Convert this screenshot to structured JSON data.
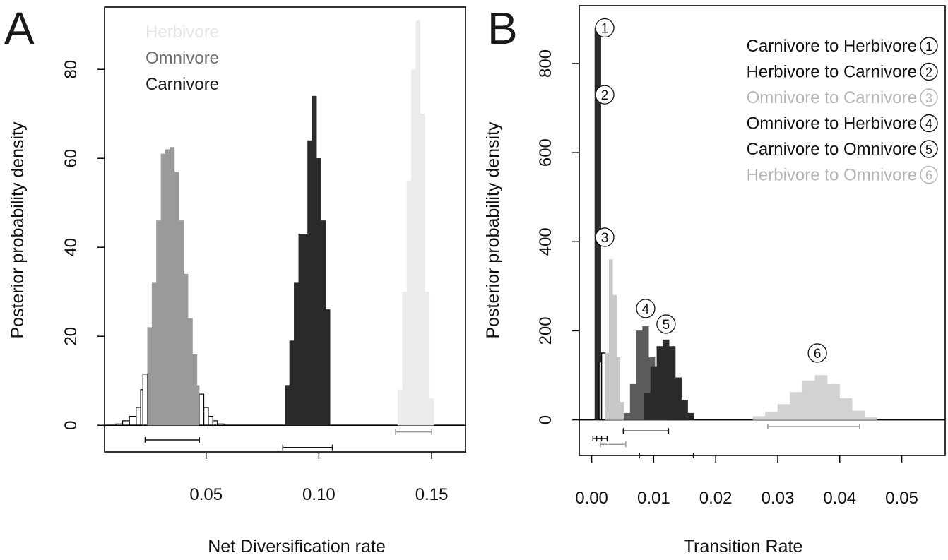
{
  "chart_data": [
    {
      "panel_label": "A",
      "type": "histogram",
      "xlabel": "Net Diversification rate",
      "ylabel": "Posterior probability density",
      "xlim": [
        0.005,
        0.165
      ],
      "ylim": [
        -6,
        94
      ],
      "x_ticks": [
        0.05,
        0.1,
        0.15
      ],
      "x_tick_labels": [
        "0.05",
        "0.10",
        "0.15"
      ],
      "y_ticks": [
        0,
        20,
        40,
        60,
        80
      ],
      "y_tick_labels": [
        "0",
        "20",
        "40",
        "60",
        "80"
      ],
      "legend_position": "top-left",
      "legend": [
        {
          "label": "Herbivore",
          "color": "#e6e6e6"
        },
        {
          "label": "Omnivore",
          "color": "#707070"
        },
        {
          "label": "Carnivore",
          "color": "#1a1a1a"
        }
      ],
      "series": [
        {
          "name": "Omnivore",
          "fill": "#9a9a9a",
          "bins": [
            [
              0.024,
              0.026,
              22
            ],
            [
              0.026,
              0.028,
              32
            ],
            [
              0.028,
              0.03,
              46
            ],
            [
              0.03,
              0.032,
              61
            ],
            [
              0.032,
              0.034,
              62
            ],
            [
              0.034,
              0.036,
              62.5
            ],
            [
              0.036,
              0.038,
              57
            ],
            [
              0.038,
              0.04,
              46
            ],
            [
              0.04,
              0.042,
              34
            ],
            [
              0.042,
              0.044,
              24
            ],
            [
              0.044,
              0.046,
              16
            ],
            [
              0.046,
              0.047,
              9
            ]
          ],
          "outline_bins": [
            [
              0.01,
              0.013,
              0.3
            ],
            [
              0.013,
              0.016,
              1
            ],
            [
              0.016,
              0.019,
              2
            ],
            [
              0.019,
              0.021,
              4
            ],
            [
              0.021,
              0.022,
              8
            ],
            [
              0.022,
              0.024,
              11.5
            ],
            [
              0.047,
              0.049,
              7
            ],
            [
              0.049,
              0.051,
              4
            ],
            [
              0.051,
              0.053,
              2
            ],
            [
              0.053,
              0.055,
              1
            ],
            [
              0.055,
              0.058,
              0.3
            ]
          ],
          "credible_interval": [
            0.023,
            0.047
          ],
          "ci_y": -3.3
        },
        {
          "name": "Carnivore",
          "fill": "#2a2a2a",
          "bins": [
            [
              0.085,
              0.087,
              9
            ],
            [
              0.087,
              0.089,
              19
            ],
            [
              0.089,
              0.091,
              32
            ],
            [
              0.091,
              0.093,
              43
            ],
            [
              0.093,
              0.095,
              43
            ],
            [
              0.095,
              0.097,
              64
            ],
            [
              0.097,
              0.099,
              74
            ],
            [
              0.099,
              0.101,
              60
            ],
            [
              0.101,
              0.103,
              46
            ],
            [
              0.103,
              0.105,
              26
            ]
          ],
          "credible_interval": [
            0.084,
            0.106
          ],
          "ci_y": -5
        },
        {
          "name": "Herbivore",
          "fill": "#ebebeb",
          "bins": [
            [
              0.135,
              0.137,
              8
            ],
            [
              0.137,
              0.139,
              30
            ],
            [
              0.139,
              0.141,
              55
            ],
            [
              0.141,
              0.143,
              80
            ],
            [
              0.143,
              0.145,
              91
            ],
            [
              0.145,
              0.147,
              70
            ],
            [
              0.147,
              0.149,
              30
            ],
            [
              0.149,
              0.151,
              6
            ]
          ],
          "credible_interval": [
            0.134,
            0.15
          ],
          "ci_y": -1.5
        }
      ]
    },
    {
      "panel_label": "B",
      "type": "histogram",
      "xlabel": "Transition Rate",
      "ylabel": "Posterior probability density",
      "xlim": [
        -0.002,
        0.057
      ],
      "ylim": [
        -80,
        930
      ],
      "x_ticks": [
        0.0,
        0.01,
        0.02,
        0.03,
        0.04,
        0.05
      ],
      "x_tick_labels": [
        "0.00",
        "0.01",
        "0.02",
        "0.03",
        "0.04",
        "0.05"
      ],
      "y_ticks": [
        0,
        200,
        400,
        600,
        800
      ],
      "y_tick_labels": [
        "0",
        "200",
        "400",
        "600",
        "800"
      ],
      "legend_position": "top-right",
      "legend": [
        {
          "label": "Carnivore to Herbivore",
          "num": "1",
          "color": "#111111"
        },
        {
          "label": "Herbivore to Carnivore",
          "num": "2",
          "color": "#111111"
        },
        {
          "label": "Omnivore to Carnivore",
          "num": "3",
          "color": "#b4b4b4"
        },
        {
          "label": "Omnivore to Herbivore",
          "num": "4",
          "color": "#111111"
        },
        {
          "label": "Carnivore to Omnivore",
          "num": "5",
          "color": "#111111"
        },
        {
          "label": "Herbivore to Omnivore",
          "num": "6",
          "color": "#b4b4b4"
        }
      ],
      "peak_labels": [
        {
          "num": "1",
          "x": 0.0021,
          "y": 880
        },
        {
          "num": "2",
          "x": 0.0021,
          "y": 730
        },
        {
          "num": "3",
          "x": 0.0021,
          "y": 410
        },
        {
          "num": "4",
          "x": 0.0087,
          "y": 250
        },
        {
          "num": "5",
          "x": 0.012,
          "y": 215
        },
        {
          "num": "6",
          "x": 0.0364,
          "y": 150
        }
      ],
      "series": [
        {
          "name": "Carnivore to Herbivore",
          "fill": "#2a2a2a",
          "bins": [
            [
              0.0005,
              0.001,
              880
            ],
            [
              0.001,
              0.0015,
              880
            ]
          ],
          "credible_interval": [
            0.0002,
            0.0016
          ],
          "ci_y": -42
        },
        {
          "name": "Herbivore to Carnivore",
          "fill": "#ffffff",
          "stroke": "#000000",
          "bins": [
            [
              0.0012,
              0.0016,
              130
            ],
            [
              0.0016,
              0.0022,
              150
            ],
            [
              0.0022,
              0.0026,
              20
            ]
          ],
          "credible_interval": [
            0.0008,
            0.0025
          ],
          "ci_y": -42
        },
        {
          "name": "Omnivore to Carnivore",
          "fill": "#c8c8c8",
          "bins": [
            [
              0.0022,
              0.0028,
              150
            ],
            [
              0.0028,
              0.0034,
              360
            ],
            [
              0.0034,
              0.004,
              280
            ],
            [
              0.004,
              0.0046,
              140
            ],
            [
              0.0046,
              0.0052,
              40
            ]
          ],
          "credible_interval": [
            0.0014,
            0.0055
          ],
          "ci_y": -55
        },
        {
          "name": "Omnivore to Herbivore",
          "fill": "#5c5c5c",
          "bins": [
            [
              0.0052,
              0.0062,
              15
            ],
            [
              0.0062,
              0.0072,
              80
            ],
            [
              0.0072,
              0.0082,
              200
            ],
            [
              0.0082,
              0.0092,
              210
            ],
            [
              0.0092,
              0.0102,
              140
            ],
            [
              0.0102,
              0.0112,
              40
            ],
            [
              0.0112,
              0.0122,
              10
            ]
          ],
          "credible_interval": [
            0.0051,
            0.0124
          ],
          "ci_y": -25
        },
        {
          "name": "Carnivore to Omnivore",
          "fill": "#2a2a2a",
          "bins": [
            [
              0.0085,
              0.0095,
              60
            ],
            [
              0.0095,
              0.0105,
              120
            ],
            [
              0.0105,
              0.0115,
              165
            ],
            [
              0.0115,
              0.0125,
              180
            ],
            [
              0.0125,
              0.0135,
              165
            ],
            [
              0.0135,
              0.0145,
              95
            ],
            [
              0.0145,
              0.0155,
              45
            ],
            [
              0.0155,
              0.0165,
              15
            ]
          ],
          "credible_interval": [
            0.0077,
            0.0164
          ],
          "ci_y": -80
        },
        {
          "name": "Herbivore to Omnivore",
          "fill": "#d2d2d2",
          "bins": [
            [
              0.026,
              0.028,
              8
            ],
            [
              0.028,
              0.03,
              18
            ],
            [
              0.03,
              0.032,
              35
            ],
            [
              0.032,
              0.034,
              62
            ],
            [
              0.034,
              0.036,
              88
            ],
            [
              0.036,
              0.038,
              100
            ],
            [
              0.038,
              0.04,
              80
            ],
            [
              0.04,
              0.042,
              48
            ],
            [
              0.042,
              0.044,
              20
            ],
            [
              0.044,
              0.046,
              5
            ]
          ],
          "credible_interval": [
            0.0284,
            0.0432
          ],
          "ci_y": -15
        }
      ]
    }
  ]
}
